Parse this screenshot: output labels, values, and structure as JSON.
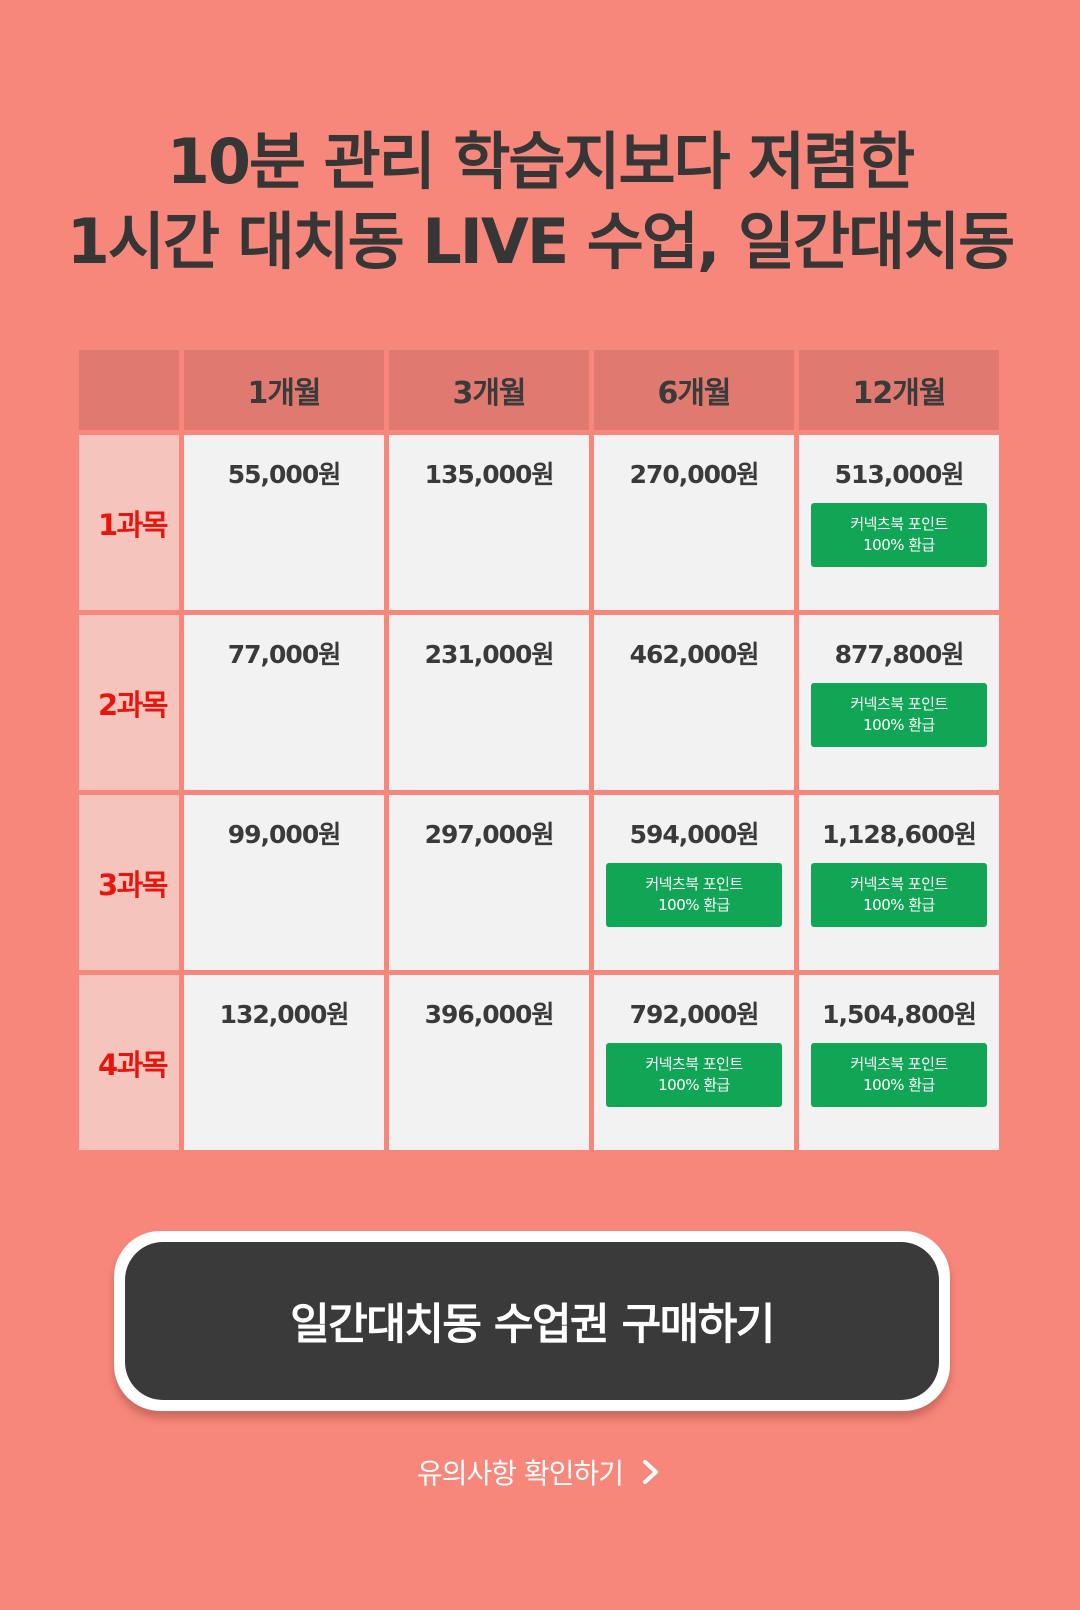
{
  "headline": {
    "line1": "10분 관리 학습지보다 저렴한",
    "line2": "1시간 대치동 LIVE 수업, 일간대치동"
  },
  "pricing": {
    "columns": [
      "",
      "1개월",
      "3개월",
      "6개월",
      "12개월"
    ],
    "rows": [
      {
        "label": "1과목",
        "prices": [
          "55,000원",
          "135,000원",
          "270,000원",
          "513,000원"
        ],
        "badges": [
          null,
          null,
          null,
          {
            "line1": "커넥츠북 포인트",
            "line2": "100% 환급"
          }
        ]
      },
      {
        "label": "2과목",
        "prices": [
          "77,000원",
          "231,000원",
          "462,000원",
          "877,800원"
        ],
        "badges": [
          null,
          null,
          null,
          {
            "line1": "커넥츠북 포인트",
            "line2": "100% 환급"
          }
        ]
      },
      {
        "label": "3과목",
        "prices": [
          "99,000원",
          "297,000원",
          "594,000원",
          "1,128,600원"
        ],
        "badges": [
          null,
          null,
          {
            "line1": "커넥츠북 포인트",
            "line2": "100% 환급"
          },
          {
            "line1": "커넥츠북 포인트",
            "line2": "100% 환급"
          }
        ]
      },
      {
        "label": "4과목",
        "prices": [
          "132,000원",
          "396,000원",
          "792,000원",
          "1,504,800원"
        ],
        "badges": [
          null,
          null,
          {
            "line1": "커넥츠북 포인트",
            "line2": "100% 환급"
          },
          {
            "line1": "커넥츠북 포인트",
            "line2": "100% 환급"
          }
        ]
      }
    ]
  },
  "cta": {
    "label": "일간대치동 수업권 구매하기"
  },
  "notice": {
    "label": "유의사항 확인하기",
    "icon": "chevron-right-icon"
  },
  "colors": {
    "background": "#f8877b",
    "header_cell": "#e07a70",
    "row_label_cell": "#f5c4bd",
    "row_label_text": "#e8150c",
    "price_cell": "#f2f2f2",
    "badge": "#11a556",
    "cta": "#3a3a3a"
  }
}
